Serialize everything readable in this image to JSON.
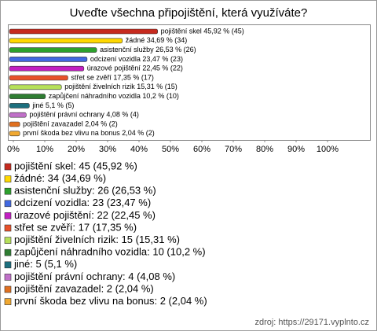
{
  "chart_data": {
    "type": "bar",
    "orientation": "horizontal",
    "title": "Uveďte všechna připojištění, která využíváte?",
    "categories": [
      "pojištění skel",
      "žádné",
      "asistenční služby",
      "odcizení vozidla",
      "úrazové pojištění",
      "střet se zvěří",
      "pojištění živelních rizik",
      "zapůjčení náhradního vozidla",
      "jiné",
      "pojištění právní ochrany",
      "pojištění zavazadel",
      "první škoda bez vlivu na bonus"
    ],
    "values": [
      45.92,
      34.69,
      26.53,
      23.47,
      22.45,
      17.35,
      15.31,
      10.2,
      5.1,
      4.08,
      2.04,
      2.04
    ],
    "value_labels": [
      "pojištění skel 45,92 % (45)",
      "žádné 34,69 % (34)",
      "asistenční služby 26,53 % (26)",
      "odcizení vozidla 23,47 % (23)",
      "úrazové pojištění 22,45 % (22)",
      "střet se zvěří 17,35 % (17)",
      "pojištění živelních rizik 15,31 % (15)",
      "zapůjčení náhradního vozidla 10,2 % (10)",
      "jiné 5,1 % (5)",
      "pojištění právní ochrany 4,08 % (4)",
      "pojištění zavazadel 2,04 % (2)",
      "první škoda bez vlivu na bonus 2,04 % (2)"
    ],
    "legend_labels": [
      "pojištění skel: 45 (45,92 %)",
      "žádné: 34 (34,69 %)",
      "asistenční služby: 26 (26,53 %)",
      "odcizení vozidla: 23 (23,47 %)",
      "úrazové pojištění: 22 (22,45 %)",
      "střet se zvěří: 17 (17,35 %)",
      "pojištění živelních rizik: 15 (15,31 %)",
      "zapůjčení náhradního vozidla: 10 (10,2 %)",
      "jiné: 5 (5,1 %)",
      "pojištění právní ochrany: 4 (4,08 %)",
      "pojištění zavazadel: 2 (2,04 %)",
      "první škoda bez vlivu na bonus: 2 (2,04 %)"
    ],
    "colors": [
      "#c62a1e",
      "#ffd800",
      "#2ca02c",
      "#4169e1",
      "#c21fc2",
      "#e8512a",
      "#b6e05a",
      "#2e7d32",
      "#1c6f7e",
      "#c070c8",
      "#e07020",
      "#f0a830"
    ],
    "xlim": [
      0,
      100
    ],
    "xticks": [
      {
        "value": 0,
        "label": "0%"
      },
      {
        "value": 10,
        "label": "10%"
      },
      {
        "value": 20,
        "label": "20%"
      },
      {
        "value": 30,
        "label": "30%"
      },
      {
        "value": 40,
        "label": "40%"
      },
      {
        "value": 50,
        "label": "50%"
      },
      {
        "value": 60,
        "label": "60%"
      },
      {
        "value": 70,
        "label": "70%"
      },
      {
        "value": 80,
        "label": "80%"
      },
      {
        "value": 90,
        "label": "90%"
      },
      {
        "value": 100,
        "label": "100%"
      }
    ],
    "source": "zdroj: https://29171.vyplnto.cz"
  }
}
